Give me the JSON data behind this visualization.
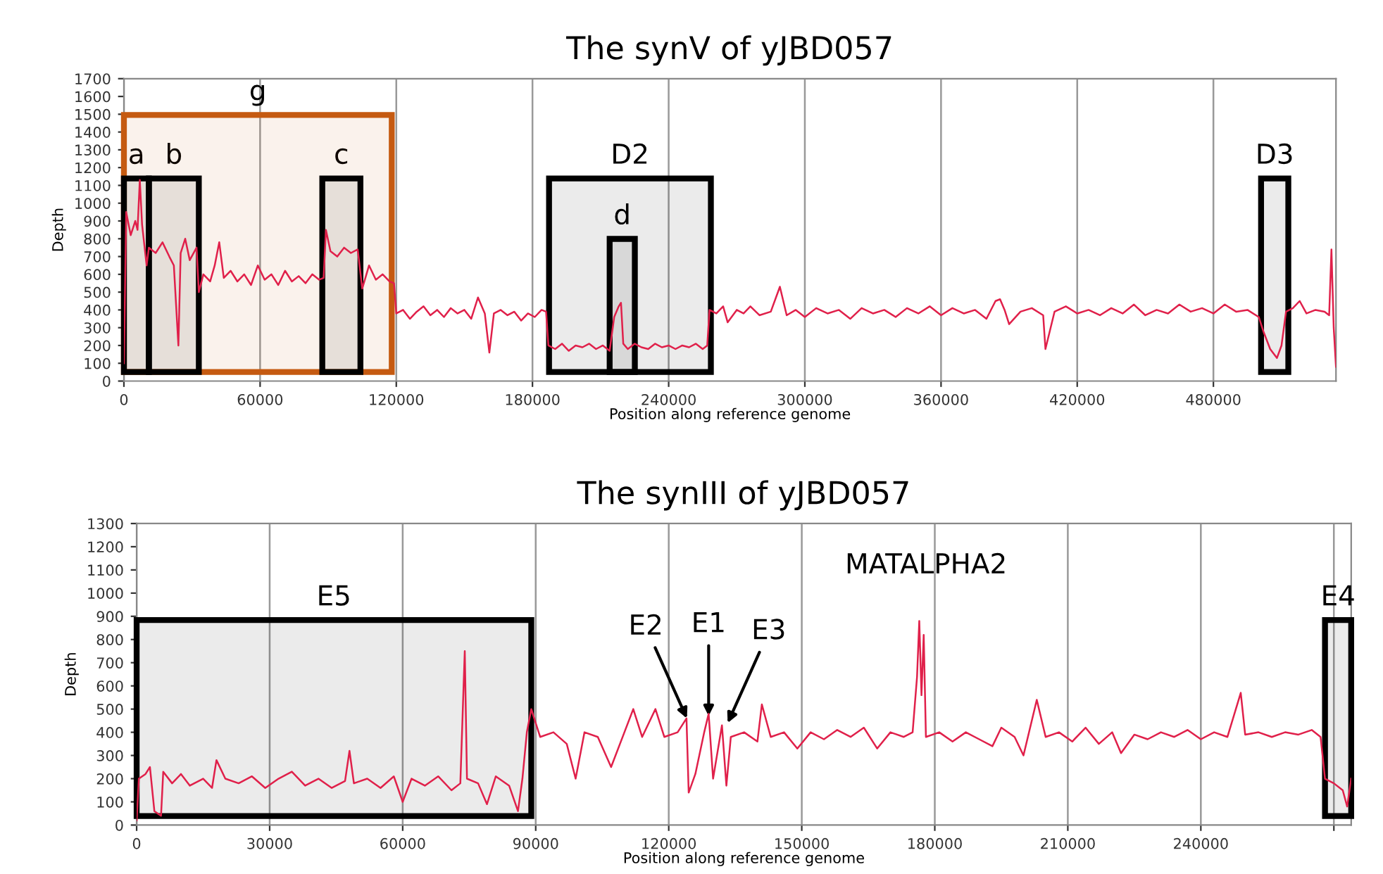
{
  "chart_data": [
    {
      "type": "line",
      "title": "The synV of yJBD057",
      "xlabel": "Position along reference genome",
      "ylabel": "Depth",
      "xlim": [
        0,
        534000
      ],
      "xticks": [
        0,
        60000,
        120000,
        180000,
        240000,
        300000,
        360000,
        420000,
        480000
      ],
      "ylim": [
        0,
        1700
      ],
      "yticks": [
        0,
        100,
        200,
        300,
        400,
        500,
        600,
        700,
        800,
        900,
        1000,
        1100,
        1200,
        1300,
        1400,
        1500,
        1600,
        1700
      ],
      "grid": "x",
      "legend": false,
      "bands": [
        {
          "axis": "x",
          "from": 0,
          "to": 118000,
          "label": "g",
          "color": "#c55a11"
        },
        {
          "axis": "x",
          "from": 0,
          "to": 11000,
          "label": "a",
          "color": "#000000"
        },
        {
          "axis": "x",
          "from": 11000,
          "to": 33000,
          "label": "b",
          "color": "#000000"
        },
        {
          "axis": "x",
          "from": 87400,
          "to": 104200,
          "label": "c",
          "color": "#000000"
        },
        {
          "axis": "x",
          "from": 187300,
          "to": 258600,
          "label": "D2",
          "color": "#000000"
        },
        {
          "axis": "x",
          "from": 214000,
          "to": 225100,
          "label": "d",
          "color": "#000000"
        },
        {
          "axis": "x",
          "from": 501000,
          "to": 513000,
          "label": "D3",
          "color": "#000000"
        }
      ],
      "series": [
        {
          "color": "#e0204a",
          "x": [
            0,
            1000,
            3000,
            5000,
            6000,
            7000,
            8000,
            10000,
            11000,
            14000,
            17000,
            20000,
            22000,
            24000,
            25000,
            27000,
            29000,
            32000,
            33000,
            35000,
            38000,
            40000,
            42000,
            44000,
            47000,
            50000,
            53000,
            56000,
            59000,
            62000,
            65000,
            68000,
            71000,
            74000,
            77000,
            80000,
            83000,
            86000,
            88000,
            89000,
            91000,
            94000,
            97000,
            100000,
            103000,
            105000,
            108000,
            111000,
            114000,
            117000,
            119000,
            120000,
            123000,
            126000,
            129000,
            132000,
            135000,
            138000,
            141000,
            144000,
            147000,
            150000,
            153000,
            156000,
            159000,
            161000,
            163000,
            166000,
            169000,
            172000,
            175000,
            178000,
            181000,
            184000,
            186000,
            187000,
            190000,
            193000,
            196000,
            199000,
            202000,
            205000,
            208000,
            211000,
            214000,
            216000,
            218000,
            219000,
            220000,
            222000,
            225000,
            228000,
            231000,
            234000,
            237000,
            240000,
            243000,
            246000,
            249000,
            252000,
            255000,
            257000,
            258000,
            261000,
            264000,
            266000,
            270000,
            273000,
            276000,
            280000,
            285000,
            289000,
            292000,
            296000,
            300000,
            305000,
            310000,
            315000,
            320000,
            325000,
            330000,
            335000,
            340000,
            345000,
            350000,
            355000,
            360000,
            365000,
            370000,
            375000,
            380000,
            384000,
            386000,
            388000,
            390000,
            395000,
            400000,
            405000,
            406000,
            410000,
            415000,
            420000,
            425000,
            430000,
            435000,
            440000,
            445000,
            450000,
            455000,
            460000,
            465000,
            470000,
            475000,
            480000,
            485000,
            490000,
            495000,
            500000,
            502000,
            505000,
            508000,
            510000,
            512000,
            515000,
            518000,
            521000,
            525000,
            529000,
            531000,
            532000,
            533000,
            534000
          ],
          "values": [
            100,
            950,
            820,
            900,
            850,
            1130,
            880,
            650,
            750,
            720,
            780,
            700,
            650,
            200,
            720,
            800,
            680,
            750,
            500,
            600,
            560,
            650,
            780,
            580,
            620,
            560,
            600,
            540,
            650,
            570,
            600,
            540,
            620,
            560,
            590,
            550,
            600,
            570,
            580,
            850,
            730,
            700,
            750,
            720,
            740,
            520,
            650,
            570,
            600,
            560,
            550,
            380,
            400,
            350,
            390,
            420,
            370,
            400,
            360,
            410,
            380,
            400,
            350,
            470,
            380,
            160,
            380,
            400,
            370,
            390,
            340,
            380,
            360,
            400,
            390,
            200,
            180,
            210,
            170,
            200,
            190,
            210,
            180,
            200,
            170,
            360,
            420,
            440,
            210,
            180,
            210,
            190,
            180,
            210,
            190,
            200,
            180,
            200,
            190,
            210,
            180,
            200,
            400,
            380,
            420,
            330,
            400,
            380,
            420,
            370,
            390,
            530,
            370,
            400,
            360,
            410,
            380,
            400,
            350,
            410,
            380,
            400,
            360,
            410,
            380,
            420,
            370,
            410,
            380,
            400,
            350,
            450,
            460,
            400,
            320,
            390,
            410,
            370,
            180,
            390,
            420,
            380,
            400,
            370,
            410,
            380,
            430,
            370,
            400,
            380,
            430,
            390,
            410,
            380,
            430,
            390,
            400,
            360,
            280,
            180,
            130,
            200,
            390,
            410,
            450,
            380,
            400,
            390,
            370,
            740,
            300,
            80
          ]
        }
      ]
    },
    {
      "type": "line",
      "title": "The synIII of yJBD057",
      "xlabel": "Position along reference genome",
      "ylabel": "Depth",
      "xlim": [
        0,
        273907
      ],
      "xticks": [
        0,
        30000,
        60000,
        90000,
        120000,
        150000,
        180000,
        210000,
        240000,
        {
          "value": 270000,
          "label": null
        }
      ],
      "ylim": [
        0,
        1300
      ],
      "yticks": [
        0,
        100,
        200,
        300,
        400,
        500,
        600,
        700,
        800,
        900,
        1000,
        1100,
        1200,
        1300
      ],
      "grid": "x",
      "legend": false,
      "bands": [
        {
          "axis": "x",
          "from": 0,
          "to": 89000,
          "label": "E5",
          "color": "#000000"
        },
        {
          "axis": "x",
          "from": 268000,
          "to": 273907,
          "label": "E4",
          "color": "#000000"
        }
      ],
      "annotations": [
        {
          "text": "E2",
          "x": 124100,
          "y": 460
        },
        {
          "text": "E1",
          "x": 129000,
          "y": 470
        },
        {
          "text": "E3",
          "x": 133300,
          "y": 440
        },
        "MATALPHA2"
      ],
      "series": [
        {
          "color": "#e0204a",
          "x": [
            0,
            500,
            2000,
            3000,
            4000,
            5500,
            6000,
            8000,
            10000,
            12000,
            15000,
            17000,
            18000,
            20000,
            23000,
            26000,
            29000,
            32000,
            35000,
            38000,
            41000,
            44000,
            47000,
            48000,
            49000,
            52000,
            55000,
            58000,
            60000,
            62000,
            65000,
            68000,
            71000,
            73000,
            74000,
            74500,
            77000,
            79000,
            81000,
            84000,
            86000,
            87000,
            88000,
            89000,
            91000,
            94000,
            97000,
            99000,
            101000,
            104000,
            107000,
            110000,
            112000,
            114000,
            117000,
            119000,
            122000,
            124000,
            124500,
            126000,
            128000,
            129000,
            130000,
            132000,
            133000,
            134000,
            137000,
            140000,
            141000,
            143000,
            146000,
            149000,
            152000,
            155000,
            158000,
            161000,
            164000,
            167000,
            170000,
            173000,
            175000,
            176000,
            176500,
            177000,
            177500,
            178000,
            181000,
            184000,
            187000,
            190000,
            193000,
            195000,
            198000,
            200000,
            203000,
            205000,
            208000,
            211000,
            214000,
            217000,
            220000,
            222000,
            225000,
            228000,
            231000,
            234000,
            237000,
            240000,
            243000,
            246000,
            249000,
            250000,
            253000,
            256000,
            259000,
            262000,
            265000,
            267000,
            268000,
            270000,
            272000,
            273000,
            273900
          ],
          "values": [
            20,
            200,
            220,
            250,
            60,
            40,
            230,
            180,
            220,
            170,
            200,
            160,
            280,
            200,
            180,
            210,
            160,
            200,
            230,
            170,
            200,
            160,
            190,
            320,
            180,
            200,
            160,
            210,
            100,
            200,
            170,
            210,
            150,
            180,
            750,
            200,
            180,
            90,
            210,
            170,
            60,
            200,
            400,
            500,
            380,
            400,
            350,
            200,
            400,
            380,
            250,
            400,
            500,
            380,
            500,
            380,
            400,
            460,
            140,
            220,
            400,
            480,
            200,
            430,
            170,
            380,
            400,
            360,
            520,
            380,
            400,
            330,
            400,
            370,
            410,
            380,
            420,
            330,
            400,
            380,
            400,
            640,
            880,
            560,
            820,
            380,
            400,
            360,
            400,
            370,
            340,
            420,
            380,
            300,
            540,
            380,
            400,
            360,
            420,
            350,
            400,
            310,
            390,
            370,
            400,
            380,
            410,
            370,
            400,
            380,
            570,
            390,
            400,
            380,
            400,
            390,
            410,
            380,
            200,
            180,
            150,
            80,
            200
          ]
        }
      ]
    }
  ]
}
